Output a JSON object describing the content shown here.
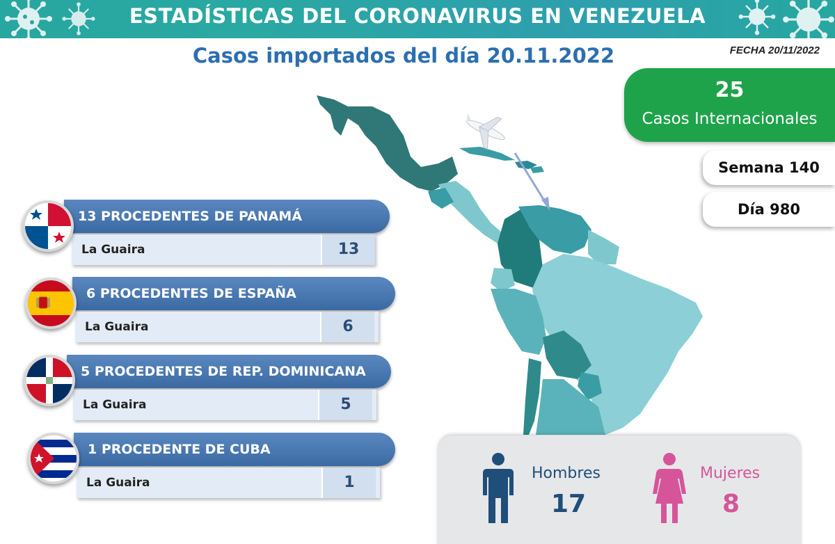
{
  "header": {
    "title": "ESTADÍSTICAS DEL CORONAVIRUS EN VENEZUELA",
    "subtitle": "Casos importados del día 20.11.2022",
    "fecha": "FECHA 20/11/2022"
  },
  "international": {
    "count": "25",
    "label": "Casos Internacionales"
  },
  "semana": "Semana 140",
  "dia": "Día 980",
  "countries": [
    {
      "header": "13 PROCEDENTES DE PANAMÁ",
      "place": "La Guaira",
      "value": "13",
      "flag": "panama-flag"
    },
    {
      "header": "6 PROCEDENTES DE ESPAÑA",
      "place": "La Guaira",
      "value": "6",
      "flag": "spain-flag"
    },
    {
      "header": "5 PROCEDENTES DE REP. DOMINICANA",
      "place": "La Guaira",
      "value": "5",
      "flag": "dominican-republic-flag"
    },
    {
      "header": "1 PROCEDENTE DE CUBA",
      "place": "La Guaira",
      "value": "1",
      "flag": "cuba-flag"
    }
  ],
  "gender": {
    "men_label": "Hombres",
    "men_count": "17",
    "women_label": "Mujeres",
    "women_count": "8"
  },
  "colors": {
    "banner": "#27a7a0",
    "title_blue": "#2c6fb0",
    "green": "#1ea34b",
    "panel_blue": "#3b6aa3",
    "men": "#1f4e79",
    "women": "#d6559a"
  }
}
